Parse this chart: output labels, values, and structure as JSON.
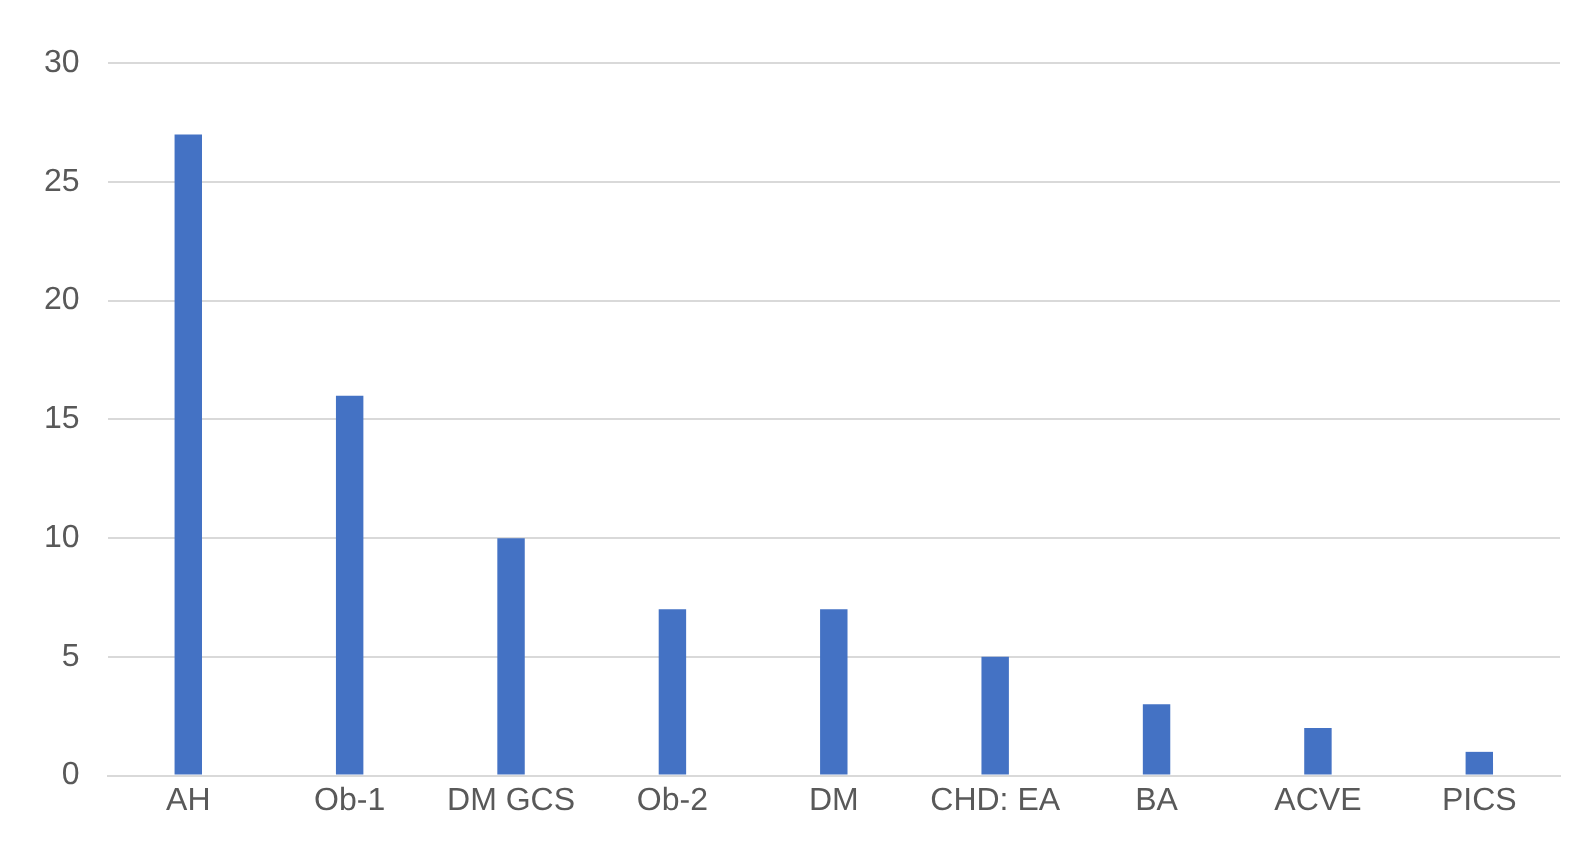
{
  "chart_data": {
    "type": "bar",
    "categories": [
      "AH",
      "Ob-1",
      "DM GCS",
      "Ob-2",
      "DM",
      "CHD: EA",
      "BA",
      "ACVE",
      "PICS"
    ],
    "values": [
      27,
      16,
      10,
      7,
      7,
      5,
      3,
      2,
      1
    ],
    "color": "#4472c4",
    "ylim": [
      0,
      30
    ],
    "yticks": [
      0,
      5,
      10,
      15,
      20,
      25,
      30
    ],
    "grid": "y"
  }
}
